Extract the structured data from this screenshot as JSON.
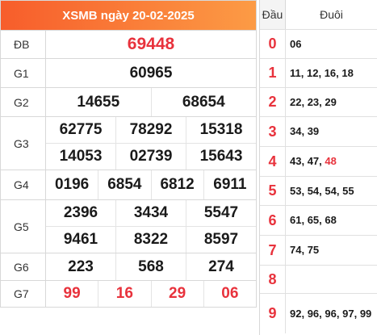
{
  "header": {
    "title": "XSMB ngày 20-02-2025"
  },
  "prizes": [
    {
      "label": "ĐB",
      "rows": [
        [
          "69448"
        ]
      ]
    },
    {
      "label": "G1",
      "rows": [
        [
          "60965"
        ]
      ]
    },
    {
      "label": "G2",
      "rows": [
        [
          "14655",
          "68654"
        ]
      ]
    },
    {
      "label": "G3",
      "rows": [
        [
          "62775",
          "78292",
          "15318"
        ],
        [
          "14053",
          "02739",
          "15643"
        ]
      ]
    },
    {
      "label": "G4",
      "rows": [
        [
          "0196",
          "6854",
          "6812",
          "6911"
        ]
      ]
    },
    {
      "label": "G5",
      "rows": [
        [
          "2396",
          "3434",
          "5547"
        ],
        [
          "9461",
          "8322",
          "8597"
        ]
      ]
    },
    {
      "label": "G6",
      "rows": [
        [
          "223",
          "568",
          "274"
        ]
      ]
    },
    {
      "label": "G7",
      "rows": [
        [
          "99",
          "16",
          "29",
          "06"
        ]
      ]
    }
  ],
  "tail_table": {
    "head_label": "Đầu",
    "tail_label": "Đuôi",
    "rows": [
      {
        "digit": "0",
        "values": [
          {
            "text": "06"
          }
        ]
      },
      {
        "digit": "1",
        "values": [
          {
            "text": "11"
          },
          {
            "text": "12"
          },
          {
            "text": "16"
          },
          {
            "text": "18"
          }
        ]
      },
      {
        "digit": "2",
        "values": [
          {
            "text": "22"
          },
          {
            "text": "23"
          },
          {
            "text": "29"
          }
        ]
      },
      {
        "digit": "3",
        "values": [
          {
            "text": "34"
          },
          {
            "text": "39"
          }
        ]
      },
      {
        "digit": "4",
        "values": [
          {
            "text": "43"
          },
          {
            "text": "47"
          },
          {
            "text": "48",
            "highlight": true
          }
        ]
      },
      {
        "digit": "5",
        "values": [
          {
            "text": "53"
          },
          {
            "text": "54"
          },
          {
            "text": "54"
          },
          {
            "text": "55"
          }
        ]
      },
      {
        "digit": "6",
        "values": [
          {
            "text": "61"
          },
          {
            "text": "65"
          },
          {
            "text": "68"
          }
        ]
      },
      {
        "digit": "7",
        "values": [
          {
            "text": "74"
          },
          {
            "text": "75"
          }
        ]
      },
      {
        "digit": "8",
        "values": []
      },
      {
        "digit": "9",
        "values": [
          {
            "text": "92"
          },
          {
            "text": "96"
          },
          {
            "text": "96"
          },
          {
            "text": "97"
          },
          {
            "text": "99"
          }
        ]
      }
    ]
  },
  "colors": {
    "header_start": "#f75d2b",
    "header_end": "#fc9b45",
    "highlight": "#e8323c"
  }
}
